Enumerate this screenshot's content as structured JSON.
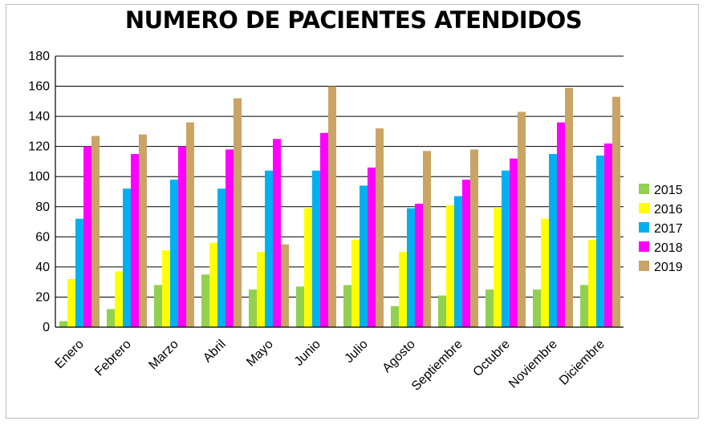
{
  "chart_data": {
    "type": "bar",
    "title": "NUMERO DE PACIENTES ATENDIDOS",
    "categories": [
      "Enero",
      "Febrero",
      "Marzo",
      "Abril",
      "Mayo",
      "Junio",
      "Julio",
      "Agosto",
      "Septiembre",
      "Octubre",
      "Noviembre",
      "Diciembre"
    ],
    "series": [
      {
        "name": "2015",
        "color": "#92d050",
        "values": [
          4,
          12,
          28,
          35,
          25,
          27,
          28,
          14,
          21,
          25,
          25,
          28
        ]
      },
      {
        "name": "2016",
        "color": "#ffff00",
        "values": [
          32,
          37,
          51,
          56,
          50,
          79,
          58,
          50,
          81,
          79,
          72,
          58
        ]
      },
      {
        "name": "2017",
        "color": "#00b0f0",
        "values": [
          72,
          92,
          98,
          92,
          104,
          104,
          94,
          79,
          87,
          104,
          115,
          114
        ]
      },
      {
        "name": "2018",
        "color": "#ff00ff",
        "values": [
          120,
          115,
          120,
          118,
          125,
          129,
          106,
          82,
          98,
          112,
          136,
          122
        ]
      },
      {
        "name": "2019",
        "color": "#c9a465",
        "values": [
          127,
          128,
          136,
          152,
          55,
          160,
          132,
          117,
          118,
          143,
          159,
          153
        ]
      }
    ],
    "ylim": [
      0,
      180
    ],
    "yticks": [
      0,
      20,
      40,
      60,
      80,
      100,
      120,
      140,
      160,
      180
    ],
    "grid": true,
    "legend": "right"
  }
}
